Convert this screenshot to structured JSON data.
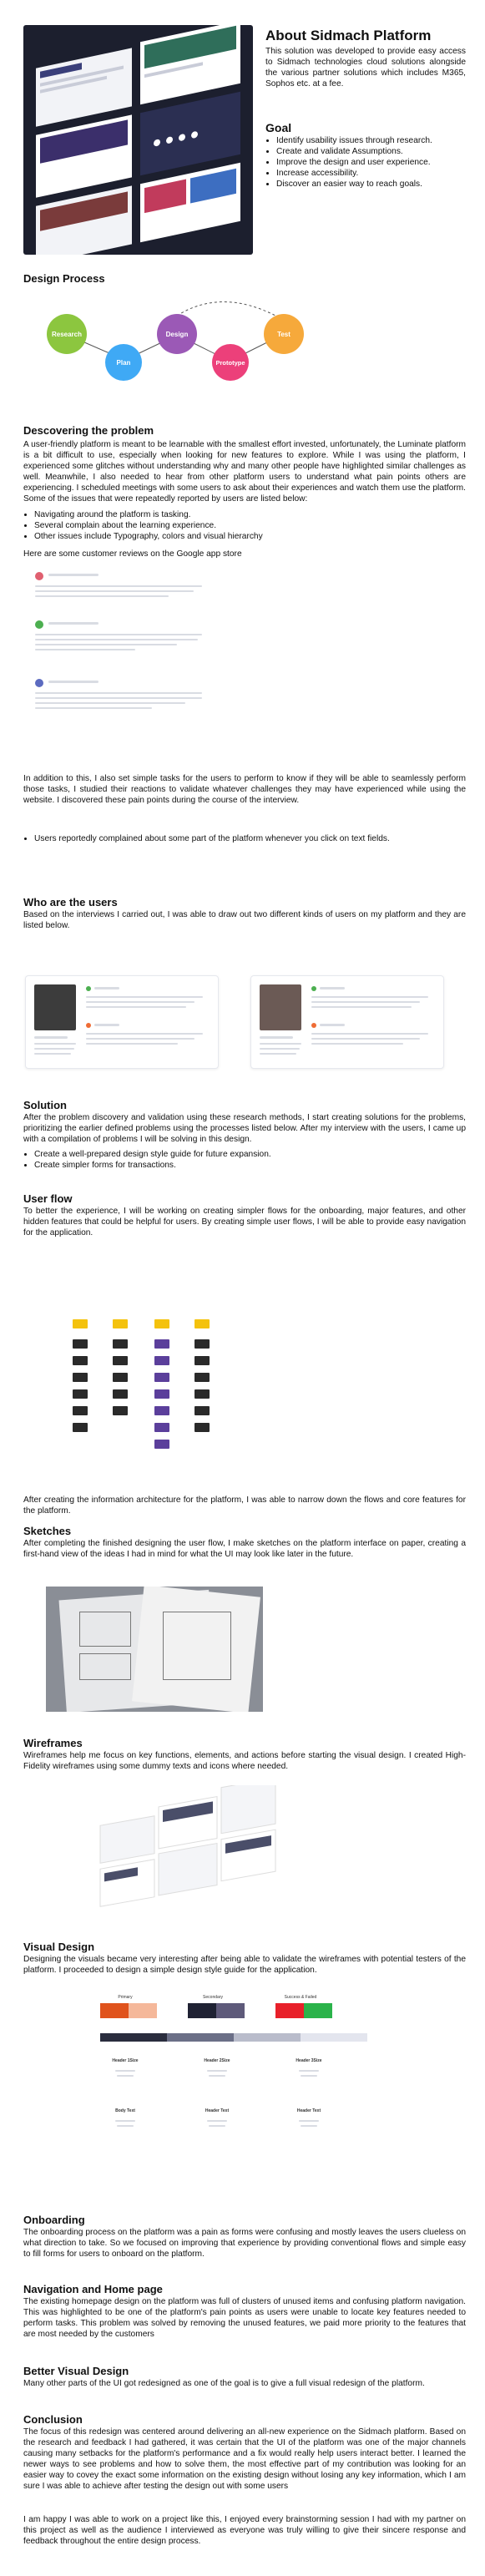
{
  "about": {
    "title": "About Sidmach Platform",
    "intro": "This solution was developed to provide easy access to Sidmach technologies cloud solutions alongside the various partner solutions which includes M365, Sophos etc. at a fee.",
    "goal_title": "Goal",
    "goals": [
      "Identify usability issues through research.",
      "Create and validate Assumptions.",
      "Improve the design and user experience.",
      "Increase accessibility.",
      "Discover an easier way to reach goals."
    ]
  },
  "design_process": {
    "title": "Design Process",
    "steps": [
      {
        "label": "Research",
        "color": "#8cc63f"
      },
      {
        "label": "Plan",
        "color": "#3fa9f5"
      },
      {
        "label": "Design",
        "color": "#9b59b6"
      },
      {
        "label": "Prototype",
        "color": "#ec407a"
      },
      {
        "label": "Test",
        "color": "#f6a93b"
      }
    ]
  },
  "discovering": {
    "title": "Descovering the problem",
    "body": "A user-friendly platform is meant to be learnable with the smallest effort invested, unfortunately, the Luminate platform is a bit difficult to use, especially when looking for new features to explore. While I was using the platform, I experienced some glitches without understanding why and many other people have highlighted similar challenges as well. Meanwhile, I also needed to hear from other platform users to understand what pain points others are experiencing. I scheduled meetings with some users to ask about their experiences and watch them use the platform. Some of the issues that were repeatedly reported by users are listed below:",
    "issues": [
      "Navigating around the platform is tasking.",
      "Several complain about the learning experience.",
      "Other issues include Typography, colors and visual hierarchy"
    ],
    "reviews_intro": "Here are some customer reviews on the Google app store",
    "followup": "In addition to this, I also set simple tasks for the users to perform to know if they will be able to seamlessly perform those tasks, I studied their reactions to validate whatever challenges they may have experienced while using the website. I discovered these pain points during the course of the interview.",
    "followup_issues": [
      "Users reportedly complained about some part of the platform whenever you click on text fields."
    ]
  },
  "users": {
    "title": "Who are the users",
    "body": "Based on the interviews I carried out, I was able to draw out two different kinds of users on my platform and they are listed below."
  },
  "solution": {
    "title": "Solution",
    "body": "After the problem discovery and validation using these research methods, I start creating solutions for the problems, prioritizing the earlier defined problems using the processes listed below. After my interview with the users, I came up with a compilation of problems I will be solving in this design.",
    "items": [
      "Create a well-prepared design style guide for future expansion.",
      "Create simpler forms for transactions."
    ]
  },
  "userflow": {
    "title": "User flow",
    "body": "To better the experience, I will be working on creating simpler flows for the onboarding, major features, and other hidden features that could be helpful for users. By creating simple user flows, I will be able to provide easy navigation for the application.",
    "after": "After creating the information architecture for the platform, I was able to narrow down the flows and core features for the platform."
  },
  "sketches": {
    "title": "Sketches",
    "body": "After completing the finished designing the user flow, I make sketches on the platform interface on paper, creating a first-hand view of the ideas I had in mind for what the UI may look like later in the future."
  },
  "wireframes": {
    "title": "Wireframes",
    "body": "Wireframes help me focus on key functions, elements, and actions before starting the visual design. I created High-Fidelity wireframes using some dummy texts and icons where needed."
  },
  "visual": {
    "title": "Visual Design",
    "body": "Designing the visuals became very interesting after being able to validate the wireframes with potential testers of the platform. I proceeded to design a simple design style guide for the application.",
    "palette_labels": [
      "Primary",
      "Secondary",
      "Success & Failed"
    ],
    "primary": [
      "#e0531c",
      "#f5b89a"
    ],
    "secondary": [
      "#1f2233",
      "#5e5a7a"
    ],
    "success_failed": [
      "#e8202a",
      "#2bb34a"
    ],
    "neutrals": [
      "#2a2d3e",
      "#6b6f87",
      "#b9bccb",
      "#e3e5ee"
    ],
    "type_labels": [
      "Header 1Size",
      "Header 2Size",
      "Header 3Size",
      "Body Text",
      "Header Text",
      "Header Text"
    ]
  },
  "onboarding": {
    "title": "Onboarding",
    "body": "The onboarding process on the platform was a pain as forms were confusing and mostly leaves the users clueless on what direction to take. So we focused on improving that experience by providing conventional flows and simple easy to fill forms for users to onboard on the platform."
  },
  "navigation": {
    "title": "Navigation and Home page",
    "body": "The existing homepage design on the platform was full of clusters of unused items and confusing platform navigation. This was highlighted to be one of the platform's pain points as users were unable to locate key features needed to perform tasks. This problem was solved by removing the unused features, we paid more priority to the features that are most needed by the customers"
  },
  "better_visual": {
    "title": "Better Visual Design",
    "body": "Many other parts of the UI got redesigned as one of the goal is to give a full visual redesign of the platform."
  },
  "conclusion": {
    "title": "Conclusion",
    "body1": "The focus of this redesign was centered around delivering an all-new experience on the Sidmach platform. Based on the research and feedback I had gathered, it was certain that the UI of the platform was one of the major channels causing many setbacks for the platform's performance and a fix would really help users interact better. I learned the newer ways to see problems and how to solve them, the most effective part of my contribution was looking for an easier way to covey the exact some information on the existing design without losing any key information, which I am sure I was able to achieve after testing the design out with some users",
    "body2": "I am happy I was able to work on a project like this, I enjoyed every brainstorming session I had with my partner on this project as well as the audience I interviewed as everyone was truly willing to give their sincere response and feedback throughout the entire design process."
  }
}
